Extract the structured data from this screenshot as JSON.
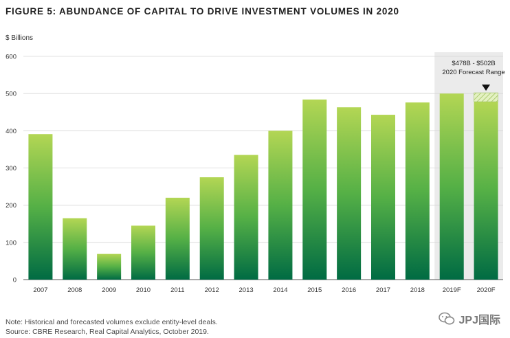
{
  "title": "FIGURE 5: ABUNDANCE OF CAPITAL TO DRIVE INVESTMENT VOLUMES IN 2020",
  "notes": {
    "line1": "Note: Historical and forecasted volumes exclude entity-level deals.",
    "line2": "Source: CBRE Research, Real Capital Analytics, October 2019."
  },
  "watermark": {
    "text": "JPJ国际",
    "icon": "wechat-icon"
  },
  "chart_data": {
    "type": "bar",
    "title": "FIGURE 5: ABUNDANCE OF CAPITAL TO DRIVE INVESTMENT VOLUMES IN 2020",
    "xlabel": "",
    "ylabel": "$ Billions",
    "ylim": [
      0,
      600
    ],
    "yticks": [
      0,
      100,
      200,
      300,
      400,
      500,
      600
    ],
    "grid": true,
    "categories": [
      "2007",
      "2008",
      "2009",
      "2010",
      "2011",
      "2012",
      "2013",
      "2014",
      "2015",
      "2016",
      "2017",
      "2018",
      "2019F",
      "2020F"
    ],
    "values": [
      391,
      165,
      69,
      145,
      220,
      275,
      335,
      400,
      484,
      463,
      443,
      476,
      500,
      478
    ],
    "forecast_range": {
      "category": "2020F",
      "low": 478,
      "high": 502
    },
    "forecast_label_line1": "$478B - $502B",
    "forecast_label_line2": "2020 Forecast Range",
    "colors": {
      "bar_top": "#b3d654",
      "bar_bottom": "#006b43",
      "forecast_shade": "#ebebeb",
      "grid": "#d6d6d6"
    }
  }
}
